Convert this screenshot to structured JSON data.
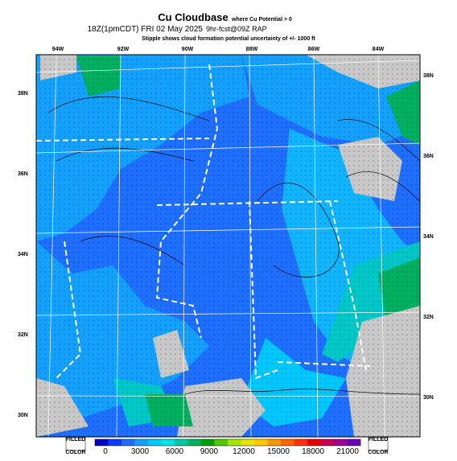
{
  "header": {
    "title": "Cu Cloudbase",
    "title_note": "where Cu Potential > 0",
    "time": "18Z(1pmCDT) FRI 02 May 2025",
    "model": "9hr-fcst@09Z RAP",
    "subtitle": "Stipple shows cloud formation potential uncertainty of +/- 1000 ft"
  },
  "lon_labels": [
    "94W",
    "92W",
    "90W",
    "88W",
    "86W",
    "84W"
  ],
  "lat_labels_left": [
    "38N",
    "36N",
    "34N",
    "32N",
    "30N"
  ],
  "lat_labels_right": [
    "38N",
    "36N",
    "34N",
    "32N",
    "30N"
  ],
  "colorbar": {
    "left_top": "FILLED",
    "left_bottom": "COLOR",
    "right_top": "FILLED",
    "right_bottom": "COLOR",
    "ticks": [
      0,
      3000,
      6000,
      9000,
      12000,
      15000,
      18000,
      21000
    ]
  }
}
